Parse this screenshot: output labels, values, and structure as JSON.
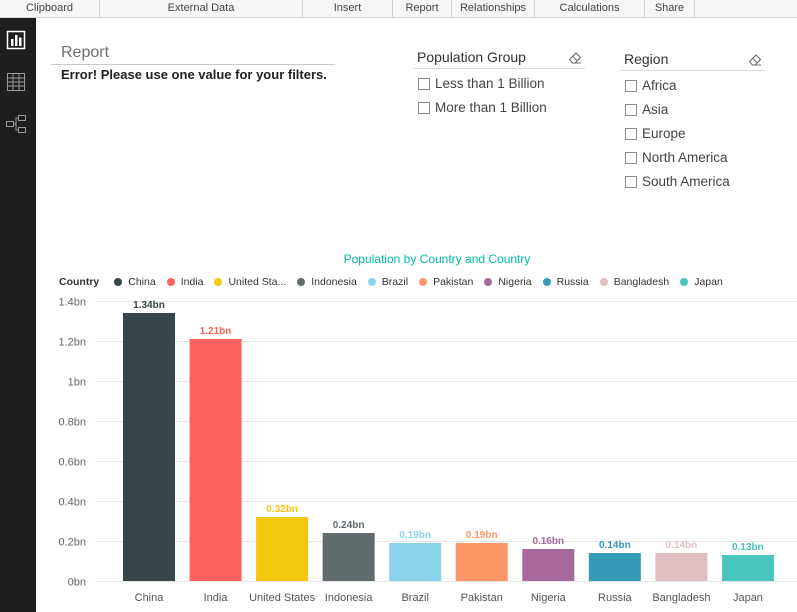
{
  "ribbon": {
    "groups": [
      "Clipboard",
      "External Data",
      "Insert",
      "Report",
      "Relationships",
      "Calculations",
      "Share"
    ]
  },
  "sidebar": {
    "items": [
      {
        "icon": "report-view-icon",
        "active": true
      },
      {
        "icon": "data-view-icon",
        "active": false
      },
      {
        "icon": "relationships-view-icon",
        "active": false
      }
    ]
  },
  "report_panel": {
    "title": "Report",
    "error": "Error! Please use one value for your filters."
  },
  "slicers": [
    {
      "title": "Population Group",
      "clear_icon": "eraser-icon",
      "items": [
        {
          "label": "Less than 1 Billion",
          "checked": false
        },
        {
          "label": "More than 1 Billion",
          "checked": false
        }
      ]
    },
    {
      "title": "Region",
      "clear_icon": "eraser-icon",
      "items": [
        {
          "label": "Africa",
          "checked": false
        },
        {
          "label": "Asia",
          "checked": false
        },
        {
          "label": "Europe",
          "checked": false
        },
        {
          "label": "North America",
          "checked": false
        },
        {
          "label": "South America",
          "checked": false
        }
      ]
    }
  ],
  "colors": {
    "sidebar_bg": "#1e1e1e",
    "chart_title": "#01B8AA",
    "active_icon": "#ffffff",
    "inactive_icon": "#9a9a9a"
  },
  "chart_data": {
    "type": "bar",
    "title": "Population by Country and Country",
    "legend": {
      "title": "Country",
      "position": "top-left",
      "labels": [
        "China",
        "India",
        "United Sta...",
        "Indonesia",
        "Brazil",
        "Pakistan",
        "Nigeria",
        "Russia",
        "Bangladesh",
        "Japan"
      ]
    },
    "categories": [
      "China",
      "India",
      "United States",
      "Indonesia",
      "Brazil",
      "Pakistan",
      "Nigeria",
      "Russia",
      "Bangladesh",
      "Japan"
    ],
    "values": [
      1.34,
      1.21,
      0.32,
      0.24,
      0.19,
      0.19,
      0.16,
      0.14,
      0.14,
      0.13
    ],
    "data_labels": [
      "1.34bn",
      "1.21bn",
      "0.32bn",
      "0.24bn",
      "0.19bn",
      "0.19bn",
      "0.16bn",
      "0.14bn",
      "0.14bn",
      "0.13bn"
    ],
    "colors": [
      "#374649",
      "#FD625E",
      "#F2C80F",
      "#5F6B6D",
      "#8AD4EB",
      "#FE9666",
      "#A66999",
      "#3599B8",
      "#DFBFBF",
      "#4AC5BB"
    ],
    "yticks": [
      0,
      0.2,
      0.4,
      0.6,
      0.8,
      1,
      1.2,
      1.4
    ],
    "ytick_labels": [
      "0bn",
      "0.2bn",
      "0.4bn",
      "0.6bn",
      "0.8bn",
      "1bn",
      "1.2bn",
      "1.4bn"
    ],
    "ylim": [
      0,
      1.4
    ],
    "grid": true
  }
}
